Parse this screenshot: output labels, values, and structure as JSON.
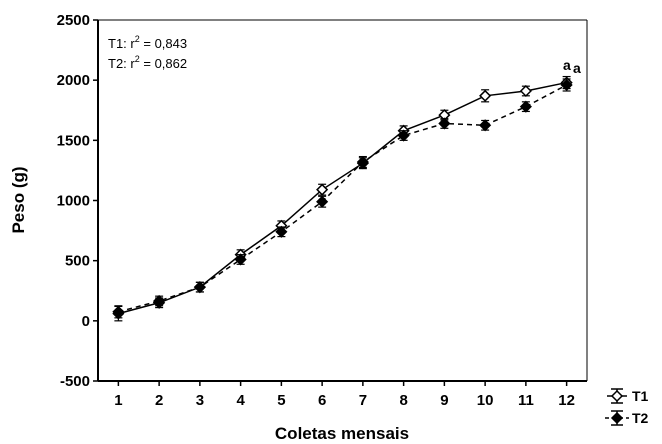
{
  "chart_data": {
    "type": "line",
    "xlabel": "Coletas mensais",
    "ylabel": "Peso (g)",
    "x": [
      1,
      2,
      3,
      4,
      5,
      6,
      7,
      8,
      9,
      10,
      11,
      12
    ],
    "xticks": [
      "1",
      "2",
      "3",
      "4",
      "5",
      "6",
      "7",
      "8",
      "9",
      "10",
      "11",
      "12"
    ],
    "ylim": [
      -500,
      2500
    ],
    "yticks": [
      "-500",
      "0",
      "500",
      "1000",
      "1500",
      "2000",
      "2500"
    ],
    "grid": false,
    "legend_position": "bottom-right, outside plot",
    "series": [
      {
        "name": "T1",
        "line_style": "solid",
        "marker": "open-diamond",
        "color": "#000000",
        "values": [
          60,
          150,
          280,
          550,
          790,
          1090,
          1310,
          1580,
          1710,
          1870,
          1910,
          1980
        ],
        "error": [
          60,
          40,
          40,
          40,
          40,
          45,
          45,
          40,
          40,
          50,
          40,
          50
        ]
      },
      {
        "name": "T2",
        "line_style": "dashed",
        "marker": "filled-diamond",
        "color": "#000000",
        "values": [
          75,
          165,
          280,
          510,
          740,
          990,
          1320,
          1540,
          1640,
          1625,
          1780,
          1960
        ],
        "error": [
          50,
          40,
          40,
          40,
          40,
          45,
          45,
          40,
          40,
          40,
          40,
          50
        ]
      }
    ],
    "annotations": [
      {
        "prefix": "T1: r",
        "sup": "2",
        "suffix": " = 0,843"
      },
      {
        "prefix": "T2: r",
        "sup": "2",
        "suffix": " = 0,862"
      }
    ],
    "significance_labels": [
      "a",
      "a"
    ]
  }
}
